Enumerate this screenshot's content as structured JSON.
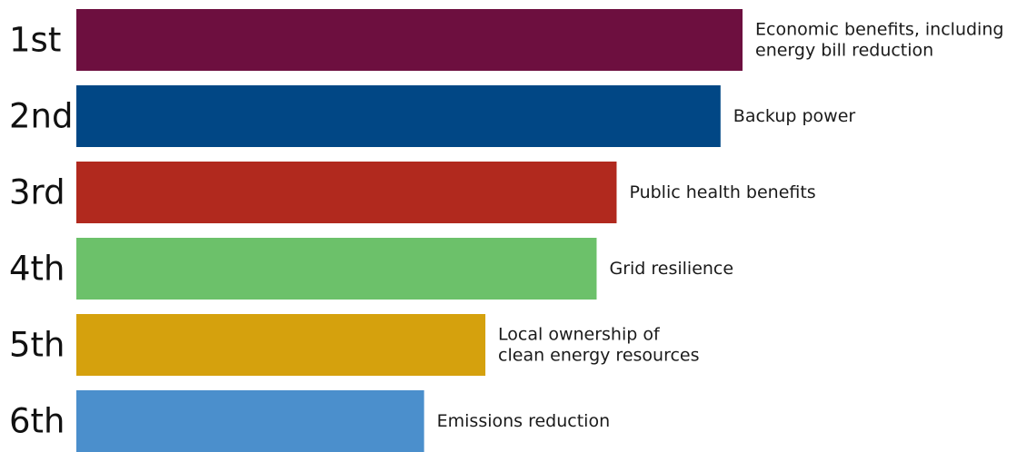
{
  "chart_data": {
    "type": "bar",
    "orientation": "horizontal",
    "categories": [
      "1st",
      "2nd",
      "3rd",
      "4th",
      "5th",
      "6th"
    ],
    "labels": [
      [
        "Economic benefits, including",
        "energy bill reduction"
      ],
      [
        "Backup power"
      ],
      [
        "Public health benefits"
      ],
      [
        "Grid resilience"
      ],
      [
        "Local ownership of",
        "clean energy resources"
      ],
      [
        "Emissions reduction"
      ]
    ],
    "values": [
      100,
      96.7,
      81.1,
      78.1,
      61.4,
      52.2
    ],
    "colors": [
      "#6d0f3f",
      "#014785",
      "#b1291e",
      "#6cc16a",
      "#d5a10d",
      "#4b8fcc"
    ],
    "axes_visible": false,
    "grid": false,
    "legend": "none"
  }
}
